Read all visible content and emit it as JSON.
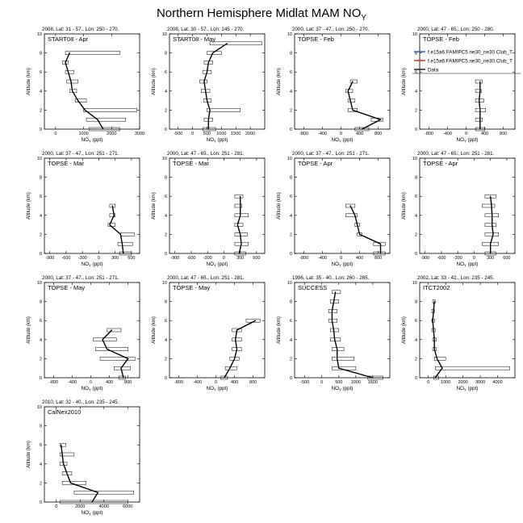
{
  "figure": {
    "title": "Northern Hemisphere Midlat MAM NO",
    "title_sub": "Y"
  },
  "common": {
    "y_axis_label": "Altitude (km)",
    "x_axis_label": "NO",
    "x_axis_label_sub": "Y",
    "x_axis_label_unit": " (ppt)",
    "y_ticks": [
      0,
      2,
      4,
      6,
      8,
      10
    ]
  },
  "legend": {
    "entries": [
      {
        "label": "f.e15a6.FAMIPC5.ne30_ne30.Club_T",
        "color": "#1f3fbf"
      },
      {
        "label": "f.e15a6.FAMIPC5.ne30_ne30.Club_T",
        "color": "#cc1111"
      },
      {
        "label": "Data",
        "color": "#000000"
      }
    ]
  },
  "chart_data": [
    {
      "type": "line",
      "header": "2008, Lat: 31 - 57., Lon: 250 - 270.",
      "campaign": "START08 - Apr",
      "xlim": [
        -400,
        3000
      ],
      "xticks": [
        0,
        1000,
        2000,
        3000
      ],
      "ylim": [
        0,
        10
      ],
      "series": [
        {
          "name": "Data",
          "x": [
            1700,
            1500,
            1050,
            800,
            600,
            550,
            450,
            350,
            500
          ],
          "y": [
            0,
            1,
            2,
            3,
            4,
            5,
            6,
            7,
            8
          ],
          "range_low": [
            1200,
            1100,
            1000,
            700,
            500,
            400,
            350,
            250,
            350
          ],
          "range_high": [
            2300,
            2500,
            2900,
            1100,
            750,
            800,
            650,
            450,
            2300
          ]
        }
      ]
    },
    {
      "type": "line",
      "header": "2008, Lat: 30 - 57., Lon: 245 - 270.",
      "campaign": "START08 - May",
      "xlim": [
        -800,
        2500
      ],
      "xticks": [
        -500,
        0,
        500,
        1000,
        1500,
        2000
      ],
      "ylim": [
        0,
        10
      ],
      "series": [
        {
          "name": "Data",
          "x": [
            550,
            550,
            600,
            500,
            450,
            400,
            500,
            550,
            700,
            1200
          ],
          "y": [
            0,
            1,
            2,
            3,
            4,
            5,
            6,
            7,
            8,
            9
          ],
          "range_low": [
            350,
            400,
            500,
            380,
            300,
            250,
            350,
            400,
            500,
            600
          ],
          "range_high": [
            800,
            700,
            1650,
            650,
            600,
            500,
            650,
            700,
            1000,
            2400
          ]
        }
      ]
    },
    {
      "type": "line",
      "header": "2000, Lat: 37 - 47., Lon: 250 - 270.",
      "campaign": "TOPSE - Feb",
      "xlim": [
        -1000,
        1050
      ],
      "xticks": [
        -800,
        -400,
        0,
        400,
        800
      ],
      "ylim": [
        0,
        10
      ],
      "series": [
        {
          "name": "Data",
          "x": [
            450,
            850,
            250,
            200,
            150,
            250
          ],
          "y": [
            0,
            1,
            2,
            3,
            4,
            5
          ],
          "range_low": [
            300,
            650,
            150,
            150,
            100,
            200
          ],
          "range_high": [
            600,
            900,
            350,
            300,
            250,
            350
          ]
        }
      ]
    },
    {
      "type": "line",
      "header": "2000, Lat: 47 - 65., Lon: 250 - 280.",
      "campaign": "TOPSE - Feb",
      "xlim": [
        -1000,
        1050
      ],
      "xticks": [
        -800,
        -400,
        0,
        400,
        800
      ],
      "ylim": [
        0,
        10
      ],
      "series": [
        {
          "name": "Data",
          "x": [
            300,
            300,
            300,
            280,
            300,
            300
          ],
          "y": [
            0,
            1,
            2,
            3,
            4,
            5
          ],
          "range_low": [
            200,
            200,
            200,
            200,
            200,
            200
          ],
          "range_high": [
            400,
            350,
            420,
            380,
            330,
            350
          ]
        }
      ]
    },
    {
      "type": "line",
      "header": "2000, Lat: 37 - 47., Lon: 251 - 271.",
      "campaign": "TOPSE - Mar",
      "xlim": [
        -1000,
        750
      ],
      "xticks": [
        -900,
        -600,
        -300,
        0,
        300,
        600
      ],
      "ylim": [
        0,
        10
      ],
      "series": [
        {
          "name": "Data",
          "x": [
            450,
            430,
            400,
            200,
            280,
            250
          ],
          "y": [
            0,
            1,
            2,
            3,
            4,
            5
          ],
          "range_low": [
            380,
            350,
            400,
            170,
            200,
            200
          ],
          "range_high": [
            600,
            620,
            650,
            300,
            300,
            300
          ]
        }
      ]
    },
    {
      "type": "line",
      "header": "2000, Lat: 47 - 65., Lon: 251 - 281.",
      "campaign": "TOPSE - Mar",
      "xlim": [
        -1000,
        750
      ],
      "xticks": [
        -900,
        -600,
        -300,
        0,
        300,
        600
      ],
      "ylim": [
        0,
        10
      ],
      "series": [
        {
          "name": "Data",
          "x": [
            280,
            320,
            300,
            250,
            300,
            300,
            300
          ],
          "y": [
            0,
            1,
            2,
            3,
            4,
            5,
            6
          ],
          "range_low": [
            200,
            200,
            200,
            200,
            200,
            200,
            200
          ],
          "range_high": [
            400,
            450,
            430,
            350,
            450,
            330,
            350
          ]
        }
      ]
    },
    {
      "type": "line",
      "header": "2000, Lat: 37 - 47., Lon: 251 - 271.",
      "campaign": "TOPSE - Apr",
      "xlim": [
        -1000,
        1050
      ],
      "xticks": [
        -800,
        -400,
        0,
        400,
        800
      ],
      "ylim": [
        0,
        10
      ],
      "series": [
        {
          "name": "Data",
          "x": [
            850,
            850,
            400,
            350,
            300,
            200
          ],
          "y": [
            0,
            1,
            2,
            3,
            4,
            5
          ],
          "range_low": [
            700,
            700,
            350,
            300,
            100,
            100
          ],
          "range_high": [
            950,
            950,
            450,
            400,
            350,
            300
          ]
        }
      ]
    },
    {
      "type": "line",
      "header": "2000, Lat: 47 - 65., Lon: 251 - 281.",
      "campaign": "TOPSE - Apr",
      "xlim": [
        -1000,
        750
      ],
      "xticks": [
        -900,
        -600,
        -300,
        0,
        300,
        600
      ],
      "ylim": [
        0,
        10
      ],
      "series": [
        {
          "name": "Data",
          "x": [
            300,
            300,
            350,
            330,
            330,
            320,
            300
          ],
          "y": [
            0,
            1,
            2,
            3,
            4,
            5,
            6
          ],
          "range_low": [
            200,
            150,
            200,
            200,
            200,
            150,
            200
          ],
          "range_high": [
            400,
            450,
            450,
            400,
            450,
            380,
            400
          ]
        }
      ]
    },
    {
      "type": "line",
      "header": "2000, Lat: 37 - 47., Lon: 251 - 271.",
      "campaign": "TOPSE - May",
      "xlim": [
        -1000,
        1050
      ],
      "xticks": [
        -800,
        -400,
        0,
        400,
        800
      ],
      "ylim": [
        0,
        10
      ],
      "series": [
        {
          "name": "Data",
          "x": [
            700,
            650,
            800,
            350,
            250,
            450
          ],
          "y": [
            0,
            1,
            2,
            3,
            4,
            5
          ],
          "range_low": [
            600,
            500,
            200,
            100,
            50,
            350
          ],
          "range_high": [
            750,
            850,
            950,
            800,
            550,
            650
          ]
        }
      ]
    },
    {
      "type": "line",
      "header": "2000, Lat: 47 - 65., Lon: 251 - 281.",
      "campaign": "TOPSE - May",
      "xlim": [
        -1000,
        1050
      ],
      "xticks": [
        -800,
        -400,
        0,
        400,
        800
      ],
      "ylim": [
        0,
        10
      ],
      "series": [
        {
          "name": "Data",
          "x": [
            180,
            300,
            400,
            450,
            420,
            450,
            850
          ],
          "y": [
            0,
            1,
            2,
            3,
            4,
            5,
            6
          ],
          "range_low": [
            100,
            200,
            300,
            350,
            350,
            350,
            650
          ],
          "range_high": [
            250,
            450,
            500,
            550,
            550,
            550,
            950
          ]
        }
      ]
    },
    {
      "type": "line",
      "header": "1996, Lat: 35 - 40., Lon: 260 - 265.",
      "campaign": "SUCCESS",
      "xlim": [
        -800,
        2000
      ],
      "xticks": [
        -500,
        0,
        500,
        1000,
        1500
      ],
      "ylim": [
        0,
        10
      ],
      "series": [
        {
          "name": "Data",
          "x": [
            1500,
            500,
            450,
            450,
            380,
            350,
            300,
            300,
            350,
            400
          ],
          "y": [
            0,
            1,
            2,
            3,
            4,
            5,
            6,
            7,
            8,
            9
          ],
          "range_low": [
            1350,
            300,
            300,
            300,
            250,
            250,
            200,
            200,
            250,
            300
          ],
          "range_high": [
            1800,
            1000,
            950,
            650,
            550,
            500,
            450,
            450,
            500,
            550
          ]
        }
      ]
    },
    {
      "type": "line",
      "header": "2002, Lat: 33 - 42., Lon: 235 - 245.",
      "campaign": "ITCT2002",
      "xlim": [
        -500,
        5000
      ],
      "xticks": [
        0,
        1000,
        2000,
        3000,
        4000
      ],
      "ylim": [
        0,
        10
      ],
      "series": [
        {
          "name": "Data",
          "x": [
            400,
            800,
            500,
            350,
            350,
            300,
            250,
            300,
            350
          ],
          "y": [
            0,
            1,
            2,
            3,
            4,
            5,
            6,
            7,
            8
          ],
          "range_low": [
            300,
            400,
            350,
            250,
            250,
            200,
            200,
            200,
            250
          ],
          "range_high": [
            600,
            4700,
            1000,
            450,
            450,
            400,
            350,
            350,
            400
          ]
        }
      ]
    },
    {
      "type": "line",
      "header": "2010, Lat: 32 - 40., Lon: 235 - 245.",
      "campaign": "CalNex2010",
      "xlim": [
        -1000,
        7000
      ],
      "xticks": [
        0,
        2000,
        4000,
        6000
      ],
      "ylim": [
        0,
        10
      ],
      "series": [
        {
          "name": "Data",
          "x": [
            3000,
            3500,
            1200,
            900,
            600,
            500,
            400
          ],
          "y": [
            0,
            1,
            2,
            3,
            4,
            5,
            6
          ],
          "range_low": [
            300,
            1500,
            500,
            500,
            300,
            300,
            300
          ],
          "range_high": [
            6000,
            6500,
            2500,
            1300,
            900,
            1500,
            800
          ]
        }
      ]
    }
  ]
}
